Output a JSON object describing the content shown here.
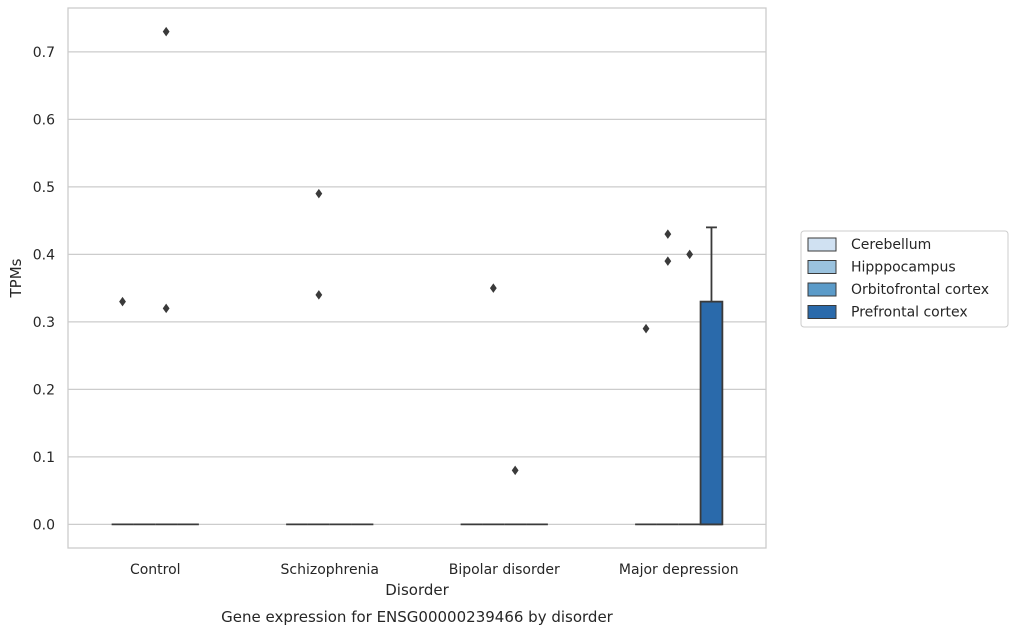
{
  "chart_data": {
    "type": "box",
    "title": "Gene expression for ENSG00000239466 by disorder",
    "xlabel": "Disorder",
    "ylabel": "TPMs",
    "categories": [
      "Control",
      "Schizophrenia",
      "Bipolar disorder",
      "Major depression"
    ],
    "ylim": [
      -0.035,
      0.765
    ],
    "yticks": [
      0.0,
      0.1,
      0.2,
      0.3,
      0.4,
      0.5,
      0.6,
      0.7
    ],
    "ytick_labels": [
      "0.0",
      "0.1",
      "0.2",
      "0.3",
      "0.4",
      "0.5",
      "0.6",
      "0.7"
    ],
    "grid": true,
    "legend": {
      "placement": "right",
      "entries": [
        "Cerebellum",
        "Hipppocampus",
        "Orbitofrontal cortex",
        "Prefrontal cortex"
      ]
    },
    "series": [
      {
        "name": "Cerebellum",
        "color": "#d0e1f2",
        "boxes": [
          {
            "category": "Control",
            "q1": 0,
            "median": 0,
            "q3": 0,
            "whisker_low": 0,
            "whisker_high": 0,
            "outliers": [
              0.33
            ]
          },
          {
            "category": "Schizophrenia",
            "q1": 0,
            "median": 0,
            "q3": 0,
            "whisker_low": 0,
            "whisker_high": 0,
            "outliers": []
          },
          {
            "category": "Bipolar disorder",
            "q1": 0,
            "median": 0,
            "q3": 0,
            "whisker_low": 0,
            "whisker_high": 0,
            "outliers": []
          },
          {
            "category": "Major depression",
            "q1": 0,
            "median": 0,
            "q3": 0,
            "whisker_low": 0,
            "whisker_high": 0,
            "outliers": [
              0.29
            ]
          }
        ]
      },
      {
        "name": "Hipppocampus",
        "color": "#9ac2de",
        "boxes": [
          {
            "category": "Control",
            "q1": 0,
            "median": 0,
            "q3": 0,
            "whisker_low": 0,
            "whisker_high": 0,
            "outliers": []
          },
          {
            "category": "Schizophrenia",
            "q1": 0,
            "median": 0,
            "q3": 0,
            "whisker_low": 0,
            "whisker_high": 0,
            "outliers": [
              0.49,
              0.34
            ]
          },
          {
            "category": "Bipolar disorder",
            "q1": 0,
            "median": 0,
            "q3": 0,
            "whisker_low": 0,
            "whisker_high": 0,
            "outliers": [
              0.35
            ]
          },
          {
            "category": "Major depression",
            "q1": 0,
            "median": 0,
            "q3": 0,
            "whisker_low": 0,
            "whisker_high": 0,
            "outliers": [
              0.43,
              0.39
            ]
          }
        ]
      },
      {
        "name": "Orbitofrontal cortex",
        "color": "#5b9bc9",
        "boxes": [
          {
            "category": "Control",
            "q1": 0,
            "median": 0,
            "q3": 0,
            "whisker_low": 0,
            "whisker_high": 0,
            "outliers": [
              0.73,
              0.32
            ]
          },
          {
            "category": "Schizophrenia",
            "q1": 0,
            "median": 0,
            "q3": 0,
            "whisker_low": 0,
            "whisker_high": 0,
            "outliers": []
          },
          {
            "category": "Bipolar disorder",
            "q1": 0,
            "median": 0,
            "q3": 0,
            "whisker_low": 0,
            "whisker_high": 0,
            "outliers": [
              0.08
            ]
          },
          {
            "category": "Major depression",
            "q1": 0,
            "median": 0,
            "q3": 0,
            "whisker_low": 0,
            "whisker_high": 0,
            "outliers": [
              0.4
            ]
          }
        ]
      },
      {
        "name": "Prefrontal cortex",
        "color": "#2a6aab",
        "boxes": [
          {
            "category": "Control",
            "q1": 0,
            "median": 0,
            "q3": 0,
            "whisker_low": 0,
            "whisker_high": 0,
            "outliers": []
          },
          {
            "category": "Schizophrenia",
            "q1": 0,
            "median": 0,
            "q3": 0,
            "whisker_low": 0,
            "whisker_high": 0,
            "outliers": []
          },
          {
            "category": "Bipolar disorder",
            "q1": 0,
            "median": 0,
            "q3": 0,
            "whisker_low": 0,
            "whisker_high": 0,
            "outliers": []
          },
          {
            "category": "Major depression",
            "q1": 0,
            "median": 0,
            "q3": 0.33,
            "whisker_low": 0,
            "whisker_high": 0.44,
            "outliers": []
          }
        ]
      }
    ]
  }
}
